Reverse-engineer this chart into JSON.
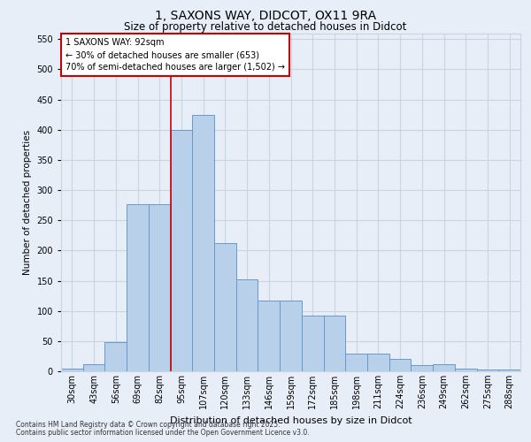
{
  "title_line1": "1, SAXONS WAY, DIDCOT, OX11 9RA",
  "title_line2": "Size of property relative to detached houses in Didcot",
  "xlabel": "Distribution of detached houses by size in Didcot",
  "ylabel": "Number of detached properties",
  "bar_labels": [
    "30sqm",
    "43sqm",
    "56sqm",
    "69sqm",
    "82sqm",
    "95sqm",
    "107sqm",
    "120sqm",
    "133sqm",
    "146sqm",
    "159sqm",
    "172sqm",
    "185sqm",
    "198sqm",
    "211sqm",
    "224sqm",
    "236sqm",
    "249sqm",
    "262sqm",
    "275sqm",
    "288sqm"
  ],
  "bar_values": [
    5,
    12,
    48,
    277,
    277,
    400,
    425,
    213,
    152,
    117,
    117,
    92,
    92,
    30,
    30,
    20,
    10,
    12,
    5,
    3,
    3
  ],
  "bar_color": "#b8d0ea",
  "bar_edge_color": "#6699cc",
  "grid_color": "#c8d4e4",
  "background_color": "#e8eef8",
  "vline_x_index": 5,
  "vline_color": "#cc0000",
  "annotation_title": "1 SAXONS WAY: 92sqm",
  "annotation_line1": "← 30% of detached houses are smaller (653)",
  "annotation_line2": "70% of semi-detached houses are larger (1,502) →",
  "annotation_box_color": "#cc0000",
  "annotation_bg": "#ffffff",
  "ylim": [
    0,
    560
  ],
  "yticks": [
    0,
    50,
    100,
    150,
    200,
    250,
    300,
    350,
    400,
    450,
    500,
    550
  ],
  "footnote1": "Contains HM Land Registry data © Crown copyright and database right 2025.",
  "footnote2": "Contains public sector information licensed under the Open Government Licence v3.0.",
  "title_fontsize": 10,
  "subtitle_fontsize": 8.5,
  "ylabel_fontsize": 7.5,
  "xlabel_fontsize": 8,
  "tick_fontsize": 7,
  "annot_fontsize": 7,
  "footnote_fontsize": 5.5
}
